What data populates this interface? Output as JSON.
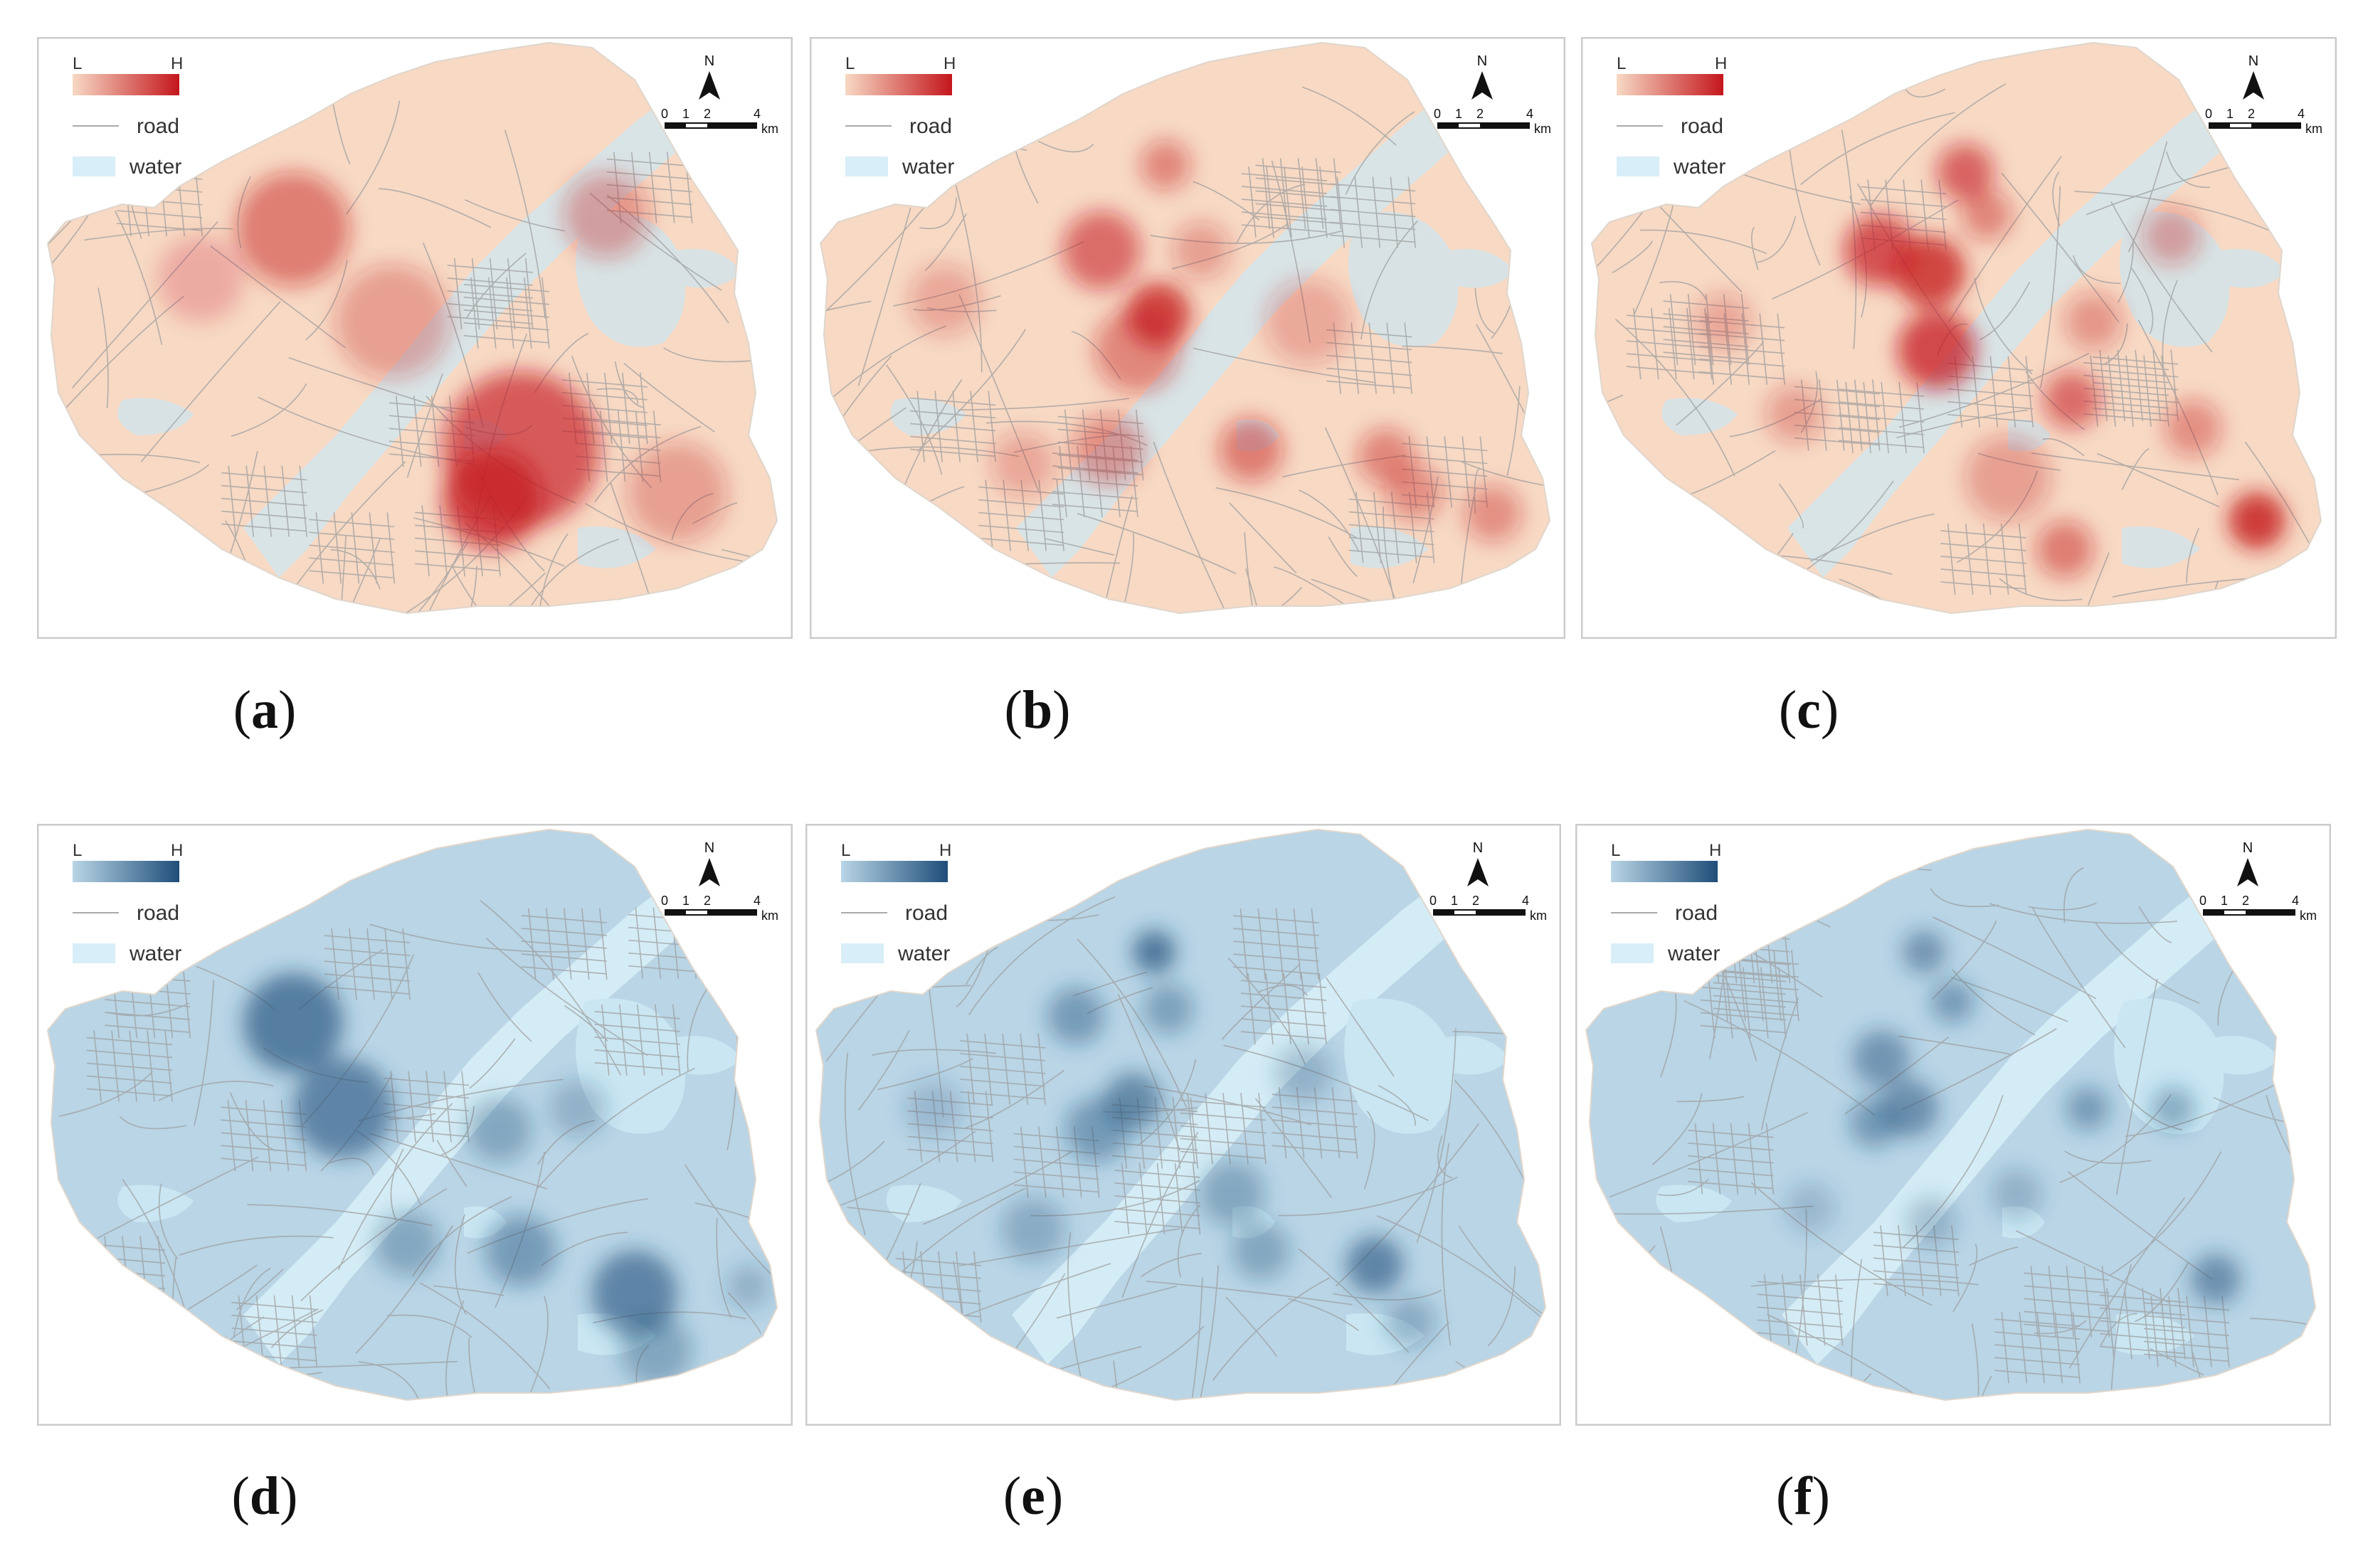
{
  "figure": {
    "panels": [
      {
        "id": "a",
        "label": "a",
        "theme": "red"
      },
      {
        "id": "b",
        "label": "b",
        "theme": "red"
      },
      {
        "id": "c",
        "label": "c",
        "theme": "red"
      },
      {
        "id": "d",
        "label": "d",
        "theme": "blue"
      },
      {
        "id": "e",
        "label": "e",
        "theme": "blue"
      },
      {
        "id": "f",
        "label": "f",
        "theme": "blue"
      }
    ],
    "legend": {
      "low": "L",
      "high": "H",
      "road": "road",
      "water": "water"
    },
    "north_arrow": "N",
    "scale_bar": {
      "ticks": [
        "0",
        "1",
        "2",
        "4"
      ],
      "unit": "km"
    },
    "colors": {
      "red_low": "#f7d9c4",
      "red_high": "#c4161c",
      "blue_low": "#b9d5e6",
      "blue_high": "#1f4e79",
      "water_red": "#d9e4e6",
      "water_blue": "#d4ecf5",
      "road": "#9e9e9e",
      "frame": "#cccccc"
    }
  }
}
